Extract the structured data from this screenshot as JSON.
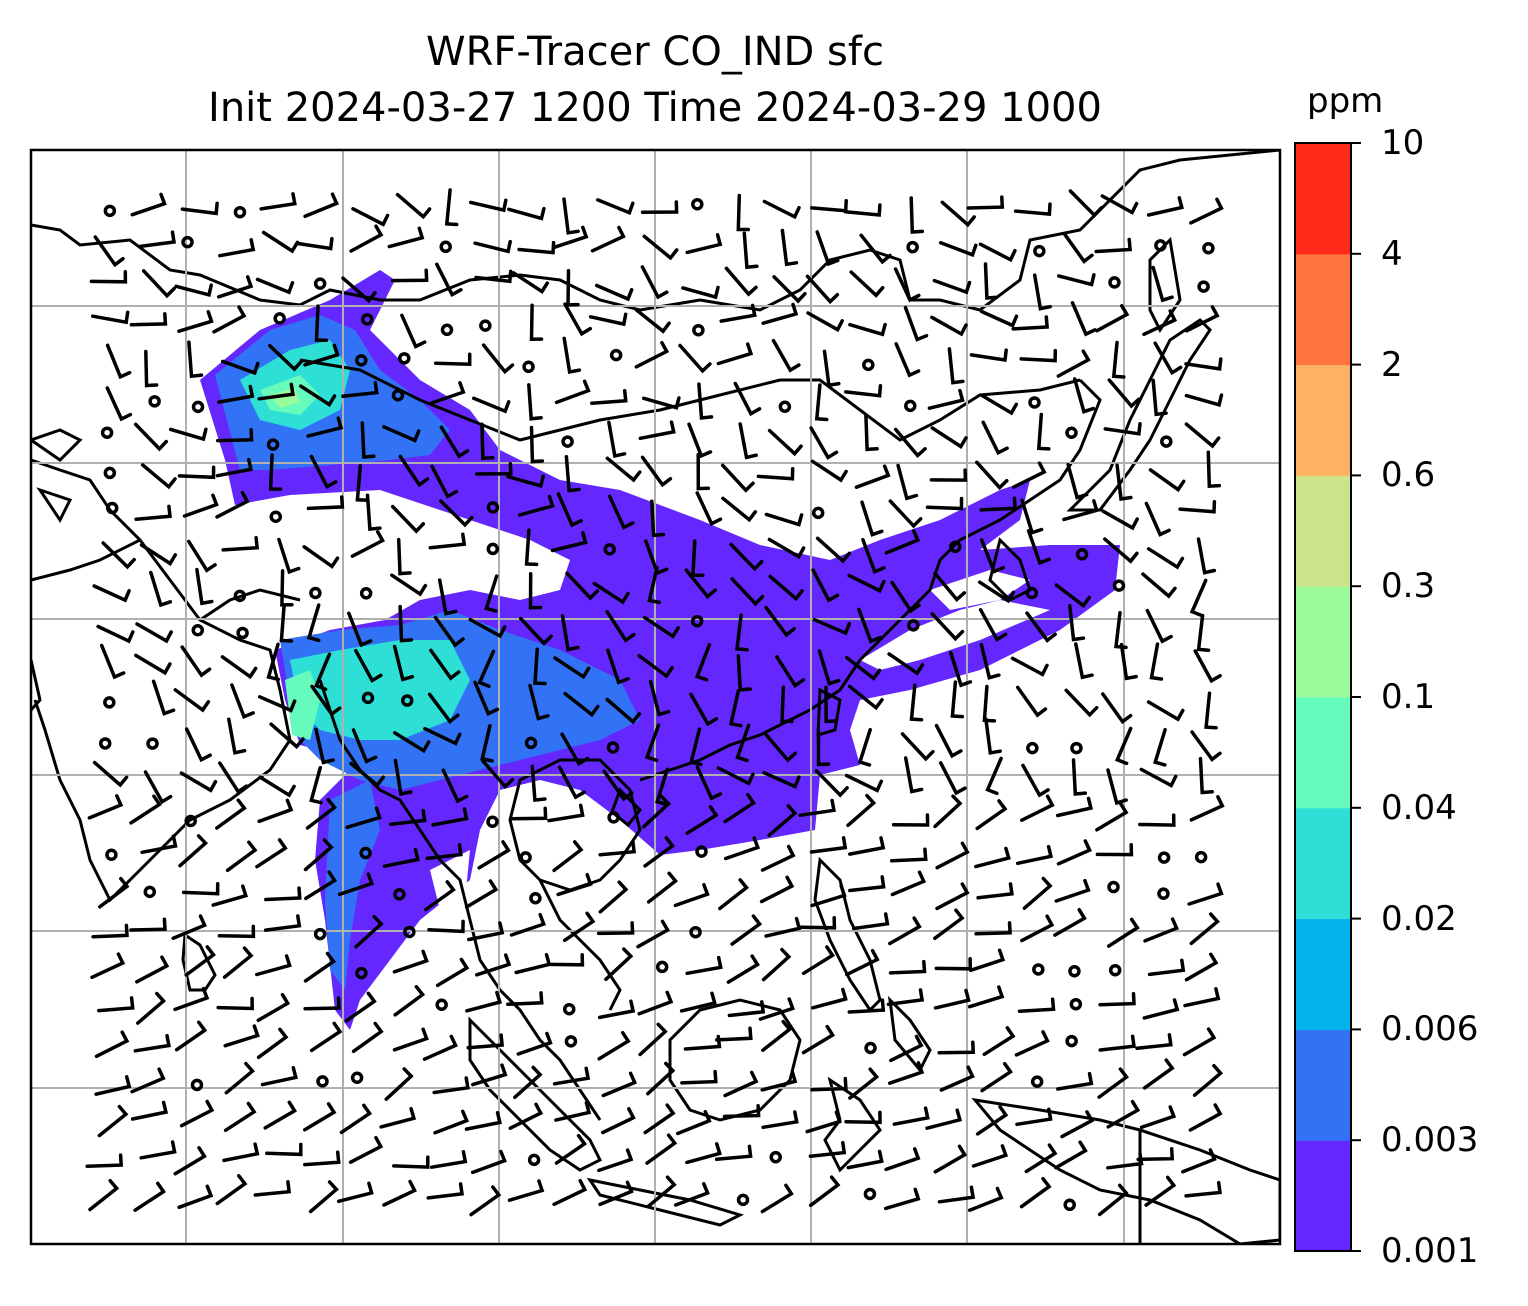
{
  "title": {
    "line1": "WRF-Tracer CO_IND sfc",
    "line2": "Init 2024-03-27 1200 Time 2024-03-29 1000"
  },
  "colorbar": {
    "unit": "ppm",
    "levels": [
      "0.001",
      "0.003",
      "0.006",
      "0.02",
      "0.04",
      "0.1",
      "0.3",
      "0.6",
      "2",
      "4",
      "10"
    ],
    "colors": [
      "#6428ff",
      "#3173f4",
      "#04b2ec",
      "#2ddfd5",
      "#66fbbd",
      "#9afb9a",
      "#cde389",
      "#feb163",
      "#ff733e",
      "#ff2b18"
    ]
  },
  "field_colors": {
    "land_outline": "#000000",
    "gridline": "#b0b0b0",
    "wind_barb": "#000000"
  }
}
